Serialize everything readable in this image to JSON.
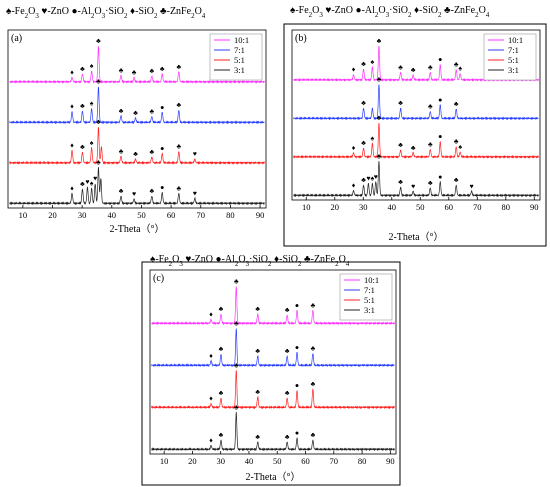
{
  "symbols": {
    "spade": "♠",
    "heart": "♥",
    "dot": "●",
    "diamond": "♦",
    "club": "♣"
  },
  "chart_data": [
    {
      "type": "line",
      "panel_label": "(a)",
      "legend_line": [
        {
          "symbol": "♠",
          "text": "-Fe",
          "sub": "2",
          "text2": "O",
          "sub2": "3"
        },
        {
          "symbol": "♥",
          "text": "-ZnO"
        },
        {
          "symbol": "●",
          "text": "-Al",
          "sub": "2",
          "text2": "O",
          "sub2": "3",
          "text3": "·SiO",
          "sub3": "2"
        },
        {
          "symbol": "♦",
          "text": "-SiO",
          "sub": "2"
        },
        {
          "symbol": "♣",
          "text": "-ZnFe",
          "sub": "2",
          "text2": "O",
          "sub2": "4"
        }
      ],
      "xlabel": "2-Theta（°）",
      "xlim": [
        5,
        92
      ],
      "xticks": [
        10,
        20,
        30,
        40,
        50,
        60,
        70,
        80,
        90
      ],
      "series": [
        {
          "name": "10:1",
          "color": "#ff33ff",
          "peaks": [
            [
              26.6,
              0.12
            ],
            [
              30.1,
              0.22
            ],
            [
              33.2,
              0.3
            ],
            [
              35.5,
              1.0
            ],
            [
              43.1,
              0.18
            ],
            [
              47.5,
              0.12
            ],
            [
              53.5,
              0.16
            ],
            [
              57.0,
              0.22
            ],
            [
              62.6,
              0.28
            ]
          ],
          "markers": [
            [
              26.6,
              "♦"
            ],
            [
              30.1,
              "♣"
            ],
            [
              33.2,
              "♠"
            ],
            [
              35.5,
              "♣"
            ],
            [
              43.1,
              "♣"
            ],
            [
              47.5,
              "♣"
            ],
            [
              53.5,
              "♣"
            ],
            [
              57.0,
              "♣"
            ],
            [
              62.6,
              "♣"
            ]
          ]
        },
        {
          "name": "7:1",
          "color": "#2a3fff",
          "peaks": [
            [
              26.6,
              0.3
            ],
            [
              30.1,
              0.32
            ],
            [
              33.2,
              0.38
            ],
            [
              35.5,
              1.0
            ],
            [
              43.1,
              0.18
            ],
            [
              48.0,
              0.12
            ],
            [
              53.5,
              0.16
            ],
            [
              57.0,
              0.28
            ],
            [
              62.6,
              0.34
            ]
          ],
          "markers": [
            [
              26.6,
              "♦"
            ],
            [
              30.1,
              "♣"
            ],
            [
              33.2,
              "♠"
            ],
            [
              35.5,
              "♣"
            ],
            [
              43.1,
              "♣"
            ],
            [
              48.0,
              "♣"
            ],
            [
              53.5,
              "♣"
            ],
            [
              57.0,
              "●"
            ],
            [
              62.6,
              "♣"
            ]
          ]
        },
        {
          "name": "5:1",
          "color": "#ff2020",
          "peaks": [
            [
              26.6,
              0.35
            ],
            [
              30.1,
              0.3
            ],
            [
              33.2,
              0.42
            ],
            [
              35.5,
              1.0
            ],
            [
              36.5,
              0.45
            ],
            [
              43.1,
              0.18
            ],
            [
              48.0,
              0.1
            ],
            [
              53.5,
              0.16
            ],
            [
              57.0,
              0.26
            ],
            [
              62.6,
              0.32
            ],
            [
              68.0,
              0.1
            ]
          ],
          "markers": [
            [
              26.6,
              "♦"
            ],
            [
              30.1,
              "♣"
            ],
            [
              33.2,
              "♠"
            ],
            [
              35.5,
              "♣"
            ],
            [
              43.1,
              "♣"
            ],
            [
              48.0,
              "♣"
            ],
            [
              53.5,
              "♣"
            ],
            [
              57.0,
              "●"
            ],
            [
              62.6,
              "♣"
            ],
            [
              68.0,
              "♥"
            ]
          ]
        },
        {
          "name": "3:1",
          "color": "#222222",
          "peaks": [
            [
              26.6,
              0.28
            ],
            [
              30.1,
              0.4
            ],
            [
              31.8,
              0.45
            ],
            [
              33.2,
              0.42
            ],
            [
              34.4,
              0.55
            ],
            [
              35.5,
              1.0
            ],
            [
              36.3,
              0.7
            ],
            [
              43.1,
              0.2
            ],
            [
              47.5,
              0.12
            ],
            [
              53.5,
              0.2
            ],
            [
              57.0,
              0.3
            ],
            [
              62.6,
              0.28
            ],
            [
              68.0,
              0.14
            ]
          ],
          "markers": [
            [
              26.6,
              "♦"
            ],
            [
              30.1,
              "♣"
            ],
            [
              31.8,
              "♥"
            ],
            [
              33.2,
              "♠"
            ],
            [
              34.4,
              "♥"
            ],
            [
              35.5,
              "♣"
            ],
            [
              43.1,
              "♣"
            ],
            [
              47.5,
              "♥"
            ],
            [
              53.5,
              "♣"
            ],
            [
              57.0,
              "●"
            ],
            [
              62.6,
              "♣"
            ],
            [
              68.0,
              "♥"
            ]
          ]
        }
      ]
    },
    {
      "type": "line",
      "panel_label": "(b)",
      "legend_line": [
        {
          "symbol": "♠",
          "text": "-Fe",
          "sub": "2",
          "text2": "O",
          "sub2": "3"
        },
        {
          "symbol": "♥",
          "text": "-ZnO"
        },
        {
          "symbol": "●",
          "text": "-Al",
          "sub": "2",
          "text2": "O",
          "sub2": "3",
          "text3": "·SiO",
          "sub3": "2"
        },
        {
          "symbol": "♦",
          "text": "-SiO",
          "sub": "2"
        },
        {
          "symbol": "♣",
          "text": "-ZnFe",
          "sub": "2",
          "text2": "O",
          "sub2": "4"
        }
      ],
      "xlabel": "2-Theta（°）",
      "xlim": [
        5,
        92
      ],
      "xticks": [
        10,
        20,
        30,
        40,
        50,
        60,
        70,
        80,
        90
      ],
      "series": [
        {
          "name": "10:1",
          "color": "#ff33ff",
          "peaks": [
            [
              26.6,
              0.15
            ],
            [
              30.1,
              0.32
            ],
            [
              33.2,
              0.38
            ],
            [
              35.5,
              1.0
            ],
            [
              43.1,
              0.22
            ],
            [
              47.5,
              0.14
            ],
            [
              53.5,
              0.22
            ],
            [
              57.0,
              0.45
            ],
            [
              62.6,
              0.3
            ],
            [
              64.0,
              0.18
            ]
          ],
          "markers": [
            [
              26.6,
              "♦"
            ],
            [
              30.1,
              "♣"
            ],
            [
              33.2,
              "♠"
            ],
            [
              35.5,
              "♣"
            ],
            [
              43.1,
              "♣"
            ],
            [
              47.5,
              "♣"
            ],
            [
              53.5,
              "♣"
            ],
            [
              57.0,
              "●"
            ],
            [
              62.6,
              "♣"
            ],
            [
              64.0,
              "♠"
            ]
          ]
        },
        {
          "name": "7:1",
          "color": "#2a3fff",
          "peaks": [
            [
              30.1,
              0.3
            ],
            [
              33.2,
              0.3
            ],
            [
              35.5,
              1.0
            ],
            [
              43.1,
              0.3
            ],
            [
              53.5,
              0.2
            ],
            [
              57.0,
              0.4
            ],
            [
              62.6,
              0.28
            ]
          ],
          "markers": [
            [
              30.1,
              "♣"
            ],
            [
              35.5,
              "♣"
            ],
            [
              43.1,
              "♣"
            ],
            [
              53.5,
              "♣"
            ],
            [
              57.0,
              "●"
            ],
            [
              62.6,
              "♣"
            ]
          ]
        },
        {
          "name": "5:1",
          "color": "#ff2020",
          "peaks": [
            [
              26.6,
              0.12
            ],
            [
              30.1,
              0.26
            ],
            [
              33.2,
              0.4
            ],
            [
              35.5,
              1.0
            ],
            [
              43.1,
              0.2
            ],
            [
              47.5,
              0.12
            ],
            [
              53.5,
              0.22
            ],
            [
              57.0,
              0.45
            ],
            [
              62.6,
              0.3
            ],
            [
              64.0,
              0.14
            ]
          ],
          "markers": [
            [
              26.6,
              "♦"
            ],
            [
              30.1,
              "♣"
            ],
            [
              33.2,
              "♠"
            ],
            [
              35.5,
              "♣"
            ],
            [
              43.1,
              "♣"
            ],
            [
              47.5,
              "♣"
            ],
            [
              53.5,
              "♣"
            ],
            [
              57.0,
              "●"
            ],
            [
              62.6,
              "♣"
            ],
            [
              64.0,
              "♠"
            ]
          ]
        },
        {
          "name": "3:1",
          "color": "#222222",
          "peaks": [
            [
              26.6,
              0.14
            ],
            [
              30.1,
              0.3
            ],
            [
              31.8,
              0.35
            ],
            [
              33.2,
              0.35
            ],
            [
              34.4,
              0.4
            ],
            [
              35.5,
              1.0
            ],
            [
              43.1,
              0.24
            ],
            [
              47.5,
              0.12
            ],
            [
              53.5,
              0.22
            ],
            [
              57.0,
              0.4
            ],
            [
              62.6,
              0.3
            ],
            [
              68.0,
              0.12
            ]
          ],
          "markers": [
            [
              26.6,
              "♦"
            ],
            [
              30.1,
              "♣"
            ],
            [
              31.8,
              "♥"
            ],
            [
              33.2,
              "♠"
            ],
            [
              34.4,
              "♥"
            ],
            [
              35.5,
              "♣"
            ],
            [
              43.1,
              "♣"
            ],
            [
              47.5,
              "♥"
            ],
            [
              53.5,
              "♣"
            ],
            [
              57.0,
              "●"
            ],
            [
              62.6,
              "♣"
            ],
            [
              68.0,
              "♥"
            ]
          ]
        }
      ]
    },
    {
      "type": "line",
      "panel_label": "(c)",
      "legend_line": [
        {
          "symbol": "♠",
          "text": "-Fe",
          "sub": "2",
          "text2": "O",
          "sub2": "3"
        },
        {
          "symbol": "♥",
          "text": "-ZnO"
        },
        {
          "symbol": "●",
          "text": "-Al",
          "sub": "2",
          "text2": "O",
          "sub2": "3",
          "text3": "·SiO",
          "sub3": "2"
        },
        {
          "symbol": "♦",
          "text": "-SiO",
          "sub": "2"
        },
        {
          "symbol": "♣",
          "text": "-ZnFe",
          "sub": "2",
          "text2": "O",
          "sub2": "4"
        }
      ],
      "xlabel": "2-Theta（°）",
      "xlim": [
        5,
        92
      ],
      "xticks": [
        10,
        20,
        30,
        40,
        50,
        60,
        70,
        80,
        90
      ],
      "series": [
        {
          "name": "10:1",
          "color": "#ff33ff",
          "peaks": [
            [
              26.6,
              0.1
            ],
            [
              30.1,
              0.25
            ],
            [
              35.5,
              1.0
            ],
            [
              43.1,
              0.25
            ],
            [
              53.5,
              0.22
            ],
            [
              57.0,
              0.35
            ],
            [
              62.6,
              0.35
            ]
          ],
          "markers": [
            [
              26.6,
              "♦"
            ],
            [
              30.1,
              "♣"
            ],
            [
              35.5,
              "♣"
            ],
            [
              43.1,
              "♣"
            ],
            [
              53.5,
              "♣"
            ],
            [
              57.0,
              "●"
            ],
            [
              62.6,
              "♣"
            ]
          ]
        },
        {
          "name": "7:1",
          "color": "#2a3fff",
          "peaks": [
            [
              26.6,
              0.12
            ],
            [
              30.1,
              0.3
            ],
            [
              35.5,
              1.0
            ],
            [
              43.1,
              0.25
            ],
            [
              53.5,
              0.25
            ],
            [
              57.0,
              0.35
            ],
            [
              62.6,
              0.32
            ]
          ],
          "markers": [
            [
              26.6,
              "♦"
            ],
            [
              30.1,
              "♣"
            ],
            [
              35.5,
              "♣"
            ],
            [
              43.1,
              "♣"
            ],
            [
              53.5,
              "♣"
            ],
            [
              57.0,
              "●"
            ],
            [
              62.6,
              "♣"
            ]
          ]
        },
        {
          "name": "5:1",
          "color": "#ff2020",
          "peaks": [
            [
              26.6,
              0.1
            ],
            [
              30.1,
              0.25
            ],
            [
              35.5,
              1.0
            ],
            [
              43.1,
              0.28
            ],
            [
              53.5,
              0.25
            ],
            [
              57.0,
              0.45
            ],
            [
              62.6,
              0.5
            ]
          ],
          "markers": [
            [
              26.6,
              "♦"
            ],
            [
              30.1,
              "♣"
            ],
            [
              35.5,
              "♣"
            ],
            [
              43.1,
              "♣"
            ],
            [
              53.5,
              "♣"
            ],
            [
              57.0,
              "●"
            ],
            [
              62.6,
              "♣"
            ]
          ]
        },
        {
          "name": "3:1",
          "color": "#222222",
          "peaks": [
            [
              26.6,
              0.1
            ],
            [
              30.1,
              0.25
            ],
            [
              35.5,
              1.0
            ],
            [
              43.1,
              0.2
            ],
            [
              53.5,
              0.2
            ],
            [
              57.0,
              0.3
            ],
            [
              62.6,
              0.25
            ]
          ],
          "markers": [
            [
              26.6,
              "♦"
            ],
            [
              30.1,
              "♣"
            ],
            [
              35.5,
              "♣"
            ],
            [
              43.1,
              "♣"
            ],
            [
              53.5,
              "♣"
            ],
            [
              57.0,
              "●"
            ],
            [
              62.6,
              "♣"
            ]
          ]
        }
      ]
    }
  ]
}
